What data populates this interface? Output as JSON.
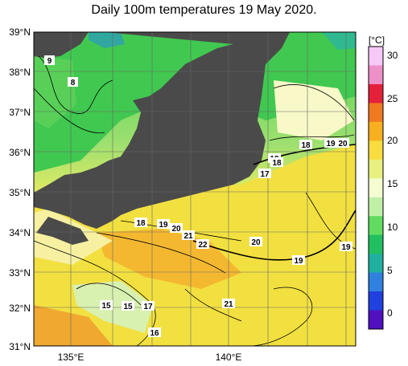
{
  "title": "Daily 100m temperatures 19 May 2020.",
  "lat_ticks": [
    "39°N",
    "38°N",
    "37°N",
    "36°N",
    "35°N",
    "34°N",
    "33°N",
    "32°N",
    "31°N"
  ],
  "lon_ticks": [
    "135°E",
    "140°E"
  ],
  "colorbar": {
    "unit": "[°C]",
    "ticks": [
      "30",
      "25",
      "20",
      "15",
      "10",
      "5",
      "0"
    ],
    "colors": [
      "#f6c8f6",
      "#ee90c8",
      "#e5203a",
      "#f07a20",
      "#f8b020",
      "#f8dc40",
      "#e8f080",
      "#f4fcd0",
      "#c0f0a8",
      "#60dc60",
      "#20c060",
      "#20b0a0",
      "#3080e0",
      "#2040e0",
      "#5010c0"
    ]
  },
  "map": {
    "bounds": {
      "lon": [
        133.8,
        143.2
      ],
      "lat": [
        31.0,
        39.0
      ]
    },
    "land_color": "#4a4a4a"
  },
  "contour_labels": [
    "9",
    "8",
    "18",
    "19",
    "20",
    "19",
    "18",
    "17",
    "18",
    "19",
    "20",
    "21",
    "22",
    "20",
    "19",
    "19",
    "21",
    "15",
    "15",
    "17",
    "16"
  ]
}
